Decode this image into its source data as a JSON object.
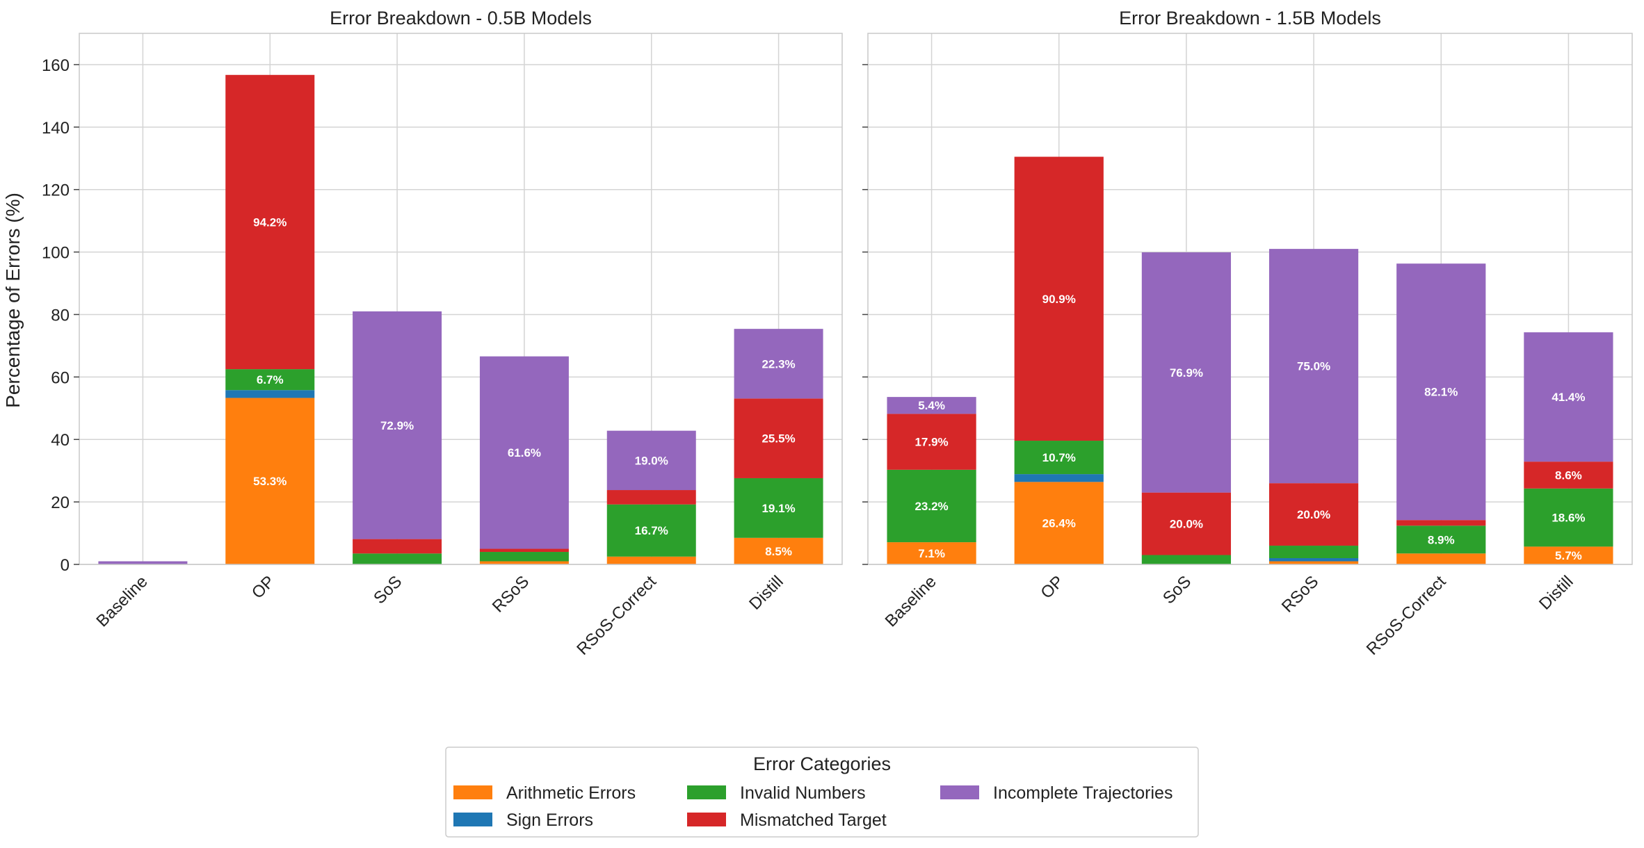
{
  "chart_data": {
    "type": "bar",
    "stacked": true,
    "ylabel": "Percentage of Errors (%)",
    "ylim": [
      0,
      170
    ],
    "yticks": [
      0,
      20,
      40,
      60,
      80,
      100,
      120,
      140,
      160
    ],
    "grid": true,
    "categories": [
      "Baseline",
      "OP",
      "SoS",
      "RSoS",
      "RSoS-Correct",
      "Distill"
    ],
    "legend": {
      "title": "Error Categories",
      "position": "bottom-center",
      "entries": [
        "Arithmetic Errors",
        "Sign Errors",
        "Invalid Numbers",
        "Mismatched Target",
        "Incomplete Trajectories"
      ]
    },
    "colors": {
      "Arithmetic Errors": "#ff7f0e",
      "Sign Errors": "#1f77b4",
      "Invalid Numbers": "#2ca02c",
      "Mismatched Target": "#d62728",
      "Incomplete Trajectories": "#9467bd"
    },
    "panels": [
      {
        "title": "Error Breakdown - 0.5B Models",
        "series": [
          {
            "name": "Arithmetic Errors",
            "values": [
              0,
              53.3,
              0,
              1,
              2.5,
              8.5
            ]
          },
          {
            "name": "Sign Errors",
            "values": [
              0,
              2.5,
              0,
              0,
              0,
              0
            ]
          },
          {
            "name": "Invalid Numbers",
            "values": [
              0,
              6.7,
              3.5,
              3,
              16.7,
              19.1
            ]
          },
          {
            "name": "Mismatched Target",
            "values": [
              0,
              94.2,
              4.6,
              1,
              4.6,
              25.5
            ]
          },
          {
            "name": "Incomplete Trajectories",
            "values": [
              1,
              0,
              72.9,
              61.6,
              19.0,
              22.3
            ]
          }
        ],
        "labels": [
          {
            "category": "OP",
            "series": "Arithmetic Errors",
            "text": "53.3%"
          },
          {
            "category": "OP",
            "series": "Invalid Numbers",
            "text": "6.7%"
          },
          {
            "category": "OP",
            "series": "Mismatched Target",
            "text": "94.2%"
          },
          {
            "category": "SoS",
            "series": "Incomplete Trajectories",
            "text": "72.9%"
          },
          {
            "category": "RSoS",
            "series": "Incomplete Trajectories",
            "text": "61.6%"
          },
          {
            "category": "RSoS-Correct",
            "series": "Invalid Numbers",
            "text": "16.7%"
          },
          {
            "category": "RSoS-Correct",
            "series": "Incomplete Trajectories",
            "text": "19.0%"
          },
          {
            "category": "Distill",
            "series": "Arithmetic Errors",
            "text": "8.5%"
          },
          {
            "category": "Distill",
            "series": "Invalid Numbers",
            "text": "19.1%"
          },
          {
            "category": "Distill",
            "series": "Mismatched Target",
            "text": "25.5%"
          },
          {
            "category": "Distill",
            "series": "Incomplete Trajectories",
            "text": "22.3%"
          }
        ]
      },
      {
        "title": "Error Breakdown - 1.5B Models",
        "series": [
          {
            "name": "Arithmetic Errors",
            "values": [
              7.1,
              26.4,
              0,
              1,
              3.5,
              5.7
            ]
          },
          {
            "name": "Sign Errors",
            "values": [
              0,
              2.5,
              0,
              1,
              0,
              0
            ]
          },
          {
            "name": "Invalid Numbers",
            "values": [
              23.2,
              10.7,
              3,
              4,
              8.9,
              18.6
            ]
          },
          {
            "name": "Mismatched Target",
            "values": [
              17.9,
              90.9,
              20.0,
              20.0,
              1.8,
              8.6
            ]
          },
          {
            "name": "Incomplete Trajectories",
            "values": [
              5.4,
              0,
              76.9,
              75.0,
              82.1,
              41.4
            ]
          }
        ],
        "labels": [
          {
            "category": "Baseline",
            "series": "Arithmetic Errors",
            "text": "7.1%"
          },
          {
            "category": "Baseline",
            "series": "Invalid Numbers",
            "text": "23.2%"
          },
          {
            "category": "Baseline",
            "series": "Mismatched Target",
            "text": "17.9%"
          },
          {
            "category": "Baseline",
            "series": "Incomplete Trajectories",
            "text": "5.4%"
          },
          {
            "category": "OP",
            "series": "Arithmetic Errors",
            "text": "26.4%"
          },
          {
            "category": "OP",
            "series": "Invalid Numbers",
            "text": "10.7%"
          },
          {
            "category": "OP",
            "series": "Mismatched Target",
            "text": "90.9%"
          },
          {
            "category": "SoS",
            "series": "Mismatched Target",
            "text": "20.0%"
          },
          {
            "category": "SoS",
            "series": "Incomplete Trajectories",
            "text": "76.9%"
          },
          {
            "category": "RSoS",
            "series": "Mismatched Target",
            "text": "20.0%"
          },
          {
            "category": "RSoS",
            "series": "Incomplete Trajectories",
            "text": "75.0%"
          },
          {
            "category": "RSoS-Correct",
            "series": "Invalid Numbers",
            "text": "8.9%"
          },
          {
            "category": "RSoS-Correct",
            "series": "Incomplete Trajectories",
            "text": "82.1%"
          },
          {
            "category": "Distill",
            "series": "Arithmetic Errors",
            "text": "5.7%"
          },
          {
            "category": "Distill",
            "series": "Invalid Numbers",
            "text": "18.6%"
          },
          {
            "category": "Distill",
            "series": "Mismatched Target",
            "text": "8.6%"
          },
          {
            "category": "Distill",
            "series": "Incomplete Trajectories",
            "text": "41.4%"
          }
        ]
      }
    ]
  }
}
